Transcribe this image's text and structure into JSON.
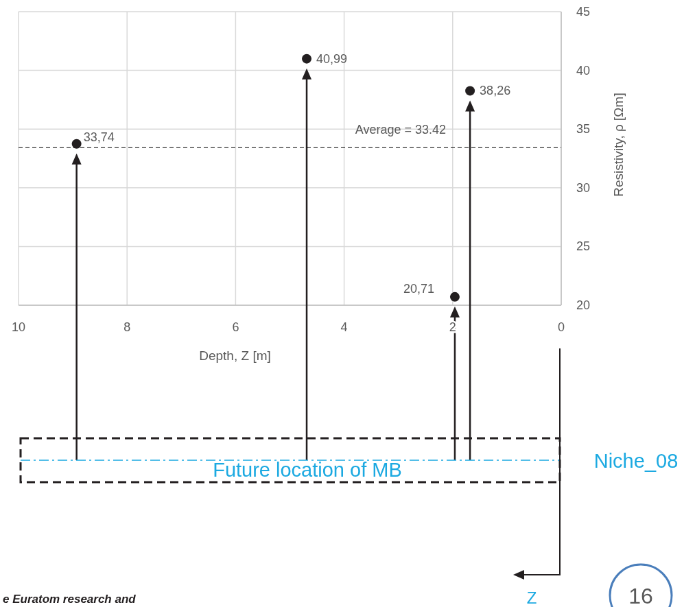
{
  "chart_data": {
    "type": "scatter",
    "xlabel": "Depth, Z [m]",
    "ylabel": "Resistivity, ρ  [Ωm]",
    "x": [
      8.93,
      4.69,
      1.96,
      1.68
    ],
    "series": [
      {
        "color": "#231f20",
        "values": [
          33.74,
          40.99,
          20.71,
          38.26
        ],
        "value_labels": [
          "33,74",
          "40,99",
          "20,71",
          "38,26"
        ]
      }
    ],
    "xlim": [
      10,
      0
    ],
    "xticks": [
      10,
      8,
      6,
      4,
      2,
      0
    ],
    "ylim": [
      20,
      45
    ],
    "yticks": [
      20,
      25,
      30,
      35,
      40,
      45
    ],
    "grid": true,
    "marker": "circle",
    "ref_lines": [
      {
        "axis": "y",
        "value": 33.42,
        "label": "Average = 33.42",
        "color": "#000000",
        "line_style": "dashed"
      }
    ],
    "annotations": [
      "Future location of MB",
      "Niche_08",
      "Z",
      "16",
      "e Euratom research and"
    ]
  }
}
